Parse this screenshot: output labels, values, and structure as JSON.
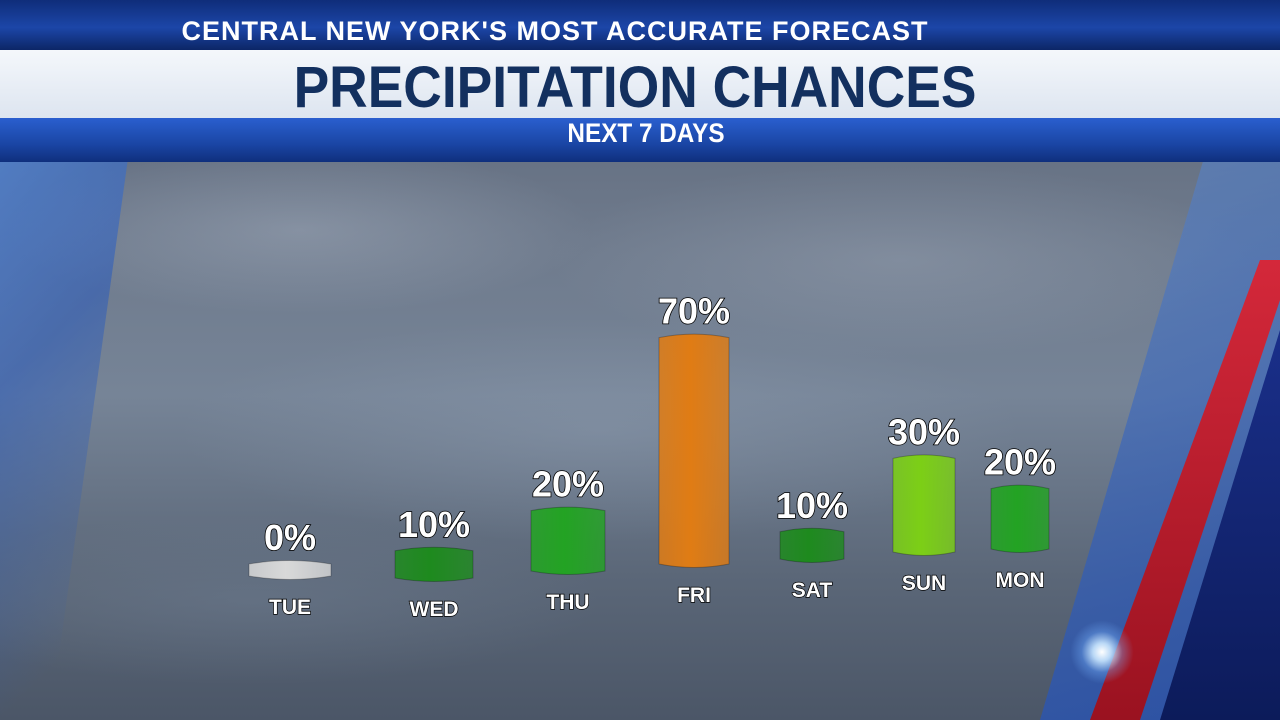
{
  "header": {
    "top_title": "CENTRAL NEW YORK'S MOST ACCURATE FORECAST",
    "main_title": "PRECIPITATION CHANCES",
    "subtitle": "NEXT 7 DAYS"
  },
  "chart_data": {
    "type": "bar",
    "title": "PRECIPITATION CHANCES",
    "subtitle": "NEXT 7 DAYS",
    "categories": [
      "TUE",
      "WED",
      "THU",
      "FRI",
      "SAT",
      "SUN",
      "MON"
    ],
    "values": [
      0,
      10,
      20,
      70,
      10,
      30,
      20
    ],
    "value_labels": [
      "0%",
      "10%",
      "20%",
      "70%",
      "10%",
      "30%",
      "20%"
    ],
    "colors": [
      "#d9d9d9",
      "#1e8a1e",
      "#23a323",
      "#e07c14",
      "#1e8a1e",
      "#7ccf16",
      "#23a323"
    ],
    "ylim": [
      0,
      100
    ],
    "grid": false,
    "legend": "none"
  },
  "colors": {
    "header_blue": "#1c46a8",
    "title_navy": "#13305f",
    "accent_red": "#d4283a"
  }
}
